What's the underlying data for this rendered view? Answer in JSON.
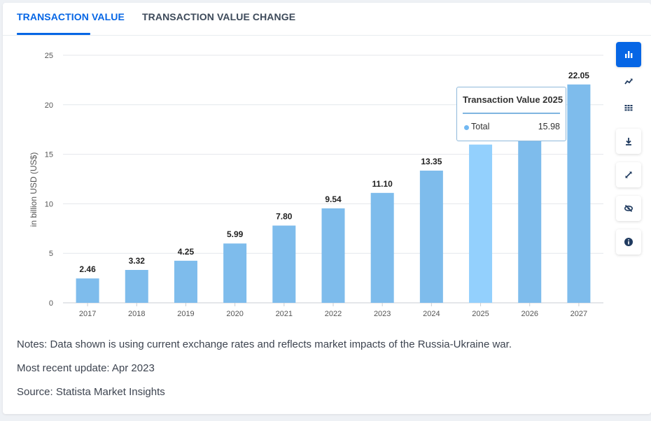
{
  "tabs": [
    {
      "label": "TRANSACTION VALUE",
      "active": true
    },
    {
      "label": "TRANSACTION VALUE CHANGE",
      "active": false
    }
  ],
  "colors": {
    "accent": "#0666e5",
    "bar": "#7ebcec",
    "bar_highlight": "#93d0fd",
    "grid": "#e4e7eb"
  },
  "chart_data": {
    "type": "bar",
    "categories": [
      "2017",
      "2018",
      "2019",
      "2020",
      "2021",
      "2022",
      "2023",
      "2024",
      "2025",
      "2026",
      "2027"
    ],
    "values": [
      2.46,
      3.32,
      4.25,
      5.99,
      7.8,
      9.54,
      11.1,
      13.35,
      15.98,
      18.6,
      22.05
    ],
    "data_labels": [
      "2.46",
      "3.32",
      "4.25",
      "5.99",
      "7.80",
      "9.54",
      "11.10",
      "13.35",
      "15.98",
      "",
      "22.05"
    ],
    "ylabel": "in billion USD (US$)",
    "xlabel": "",
    "ylim": [
      0,
      25
    ],
    "yticks": [
      0,
      5,
      10,
      15,
      20,
      25
    ],
    "grid": true,
    "highlighted_category": "2025"
  },
  "tooltip": {
    "title": "Transaction Value 2025",
    "label": "Total",
    "value": "15.98"
  },
  "toolbar": {
    "icons": [
      "bar-chart-icon",
      "line-chart-icon",
      "table-icon",
      "download-icon",
      "expand-icon",
      "hide-icon",
      "info-icon"
    ],
    "active": "bar-chart-icon"
  },
  "notes": {
    "note": "Notes: Data shown is using current exchange rates and reflects market impacts of the Russia-Ukraine war.",
    "update": "Most recent update: Apr 2023",
    "source": "Source: Statista Market Insights"
  }
}
